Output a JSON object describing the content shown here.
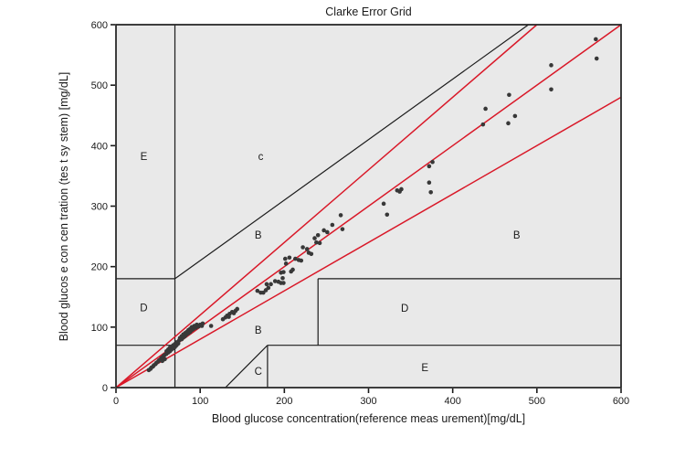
{
  "figure": {
    "title": "Clarke Error Grid",
    "xlabel": "Blood glucose concentration(reference meas urement)[mg/dL]",
    "ylabel": "Blood glucos e con cen tration (tes t sy stem) [mg/dL]"
  },
  "chart_data": {
    "type": "scatter",
    "title": "Clarke Error Grid",
    "xlabel": "Blood glucose concentration(reference meas urement)[mg/dL]",
    "ylabel": "Blood glucos e con cen tration (tes t sy stem) [mg/dL]",
    "xlim": [
      0,
      600
    ],
    "ylim": [
      0,
      600
    ],
    "xticks": [
      0,
      100,
      200,
      300,
      400,
      500,
      600
    ],
    "yticks": [
      0,
      100,
      200,
      300,
      400,
      500,
      600
    ],
    "grid": false,
    "legend": null,
    "zone_labels": [
      {
        "text": "E",
        "x": 33,
        "y": 381
      },
      {
        "text": "c",
        "x": 172,
        "y": 381
      },
      {
        "text": "B",
        "x": 169,
        "y": 251
      },
      {
        "text": "D",
        "x": 33,
        "y": 131
      },
      {
        "text": "B",
        "x": 169,
        "y": 94
      },
      {
        "text": "D",
        "x": 343,
        "y": 130
      },
      {
        "text": "B",
        "x": 476,
        "y": 251
      },
      {
        "text": "C",
        "x": 169,
        "y": 26
      },
      {
        "text": "E",
        "x": 367,
        "y": 32
      }
    ],
    "black_segments": [
      [
        [
          70,
          0
        ],
        [
          70,
          600
        ]
      ],
      [
        [
          0,
          70
        ],
        [
          70,
          70
        ]
      ],
      [
        [
          0,
          180
        ],
        [
          70,
          180
        ]
      ],
      [
        [
          70,
          180
        ],
        [
          490,
          600
        ]
      ],
      [
        [
          130,
          0
        ],
        [
          180,
          70
        ]
      ],
      [
        [
          180,
          0
        ],
        [
          180,
          70
        ]
      ],
      [
        [
          180,
          70
        ],
        [
          600,
          70
        ]
      ],
      [
        [
          240,
          70
        ],
        [
          240,
          180
        ]
      ],
      [
        [
          240,
          180
        ],
        [
          600,
          180
        ]
      ]
    ],
    "red_segments": [
      [
        [
          0,
          0
        ],
        [
          600,
          600
        ]
      ],
      [
        [
          0,
          0
        ],
        [
          500,
          600
        ]
      ],
      [
        [
          0,
          0
        ],
        [
          600,
          480
        ]
      ]
    ],
    "points": [
      [
        39,
        29
      ],
      [
        41,
        31
      ],
      [
        42,
        33
      ],
      [
        44,
        35
      ],
      [
        45,
        37
      ],
      [
        47,
        39
      ],
      [
        48,
        41
      ],
      [
        50,
        43
      ],
      [
        51,
        45
      ],
      [
        53,
        47
      ],
      [
        55,
        44
      ],
      [
        54,
        49
      ],
      [
        56,
        51
      ],
      [
        58,
        47
      ],
      [
        57,
        53
      ],
      [
        58,
        54
      ],
      [
        60,
        56
      ],
      [
        60,
        60
      ],
      [
        62,
        58
      ],
      [
        62,
        63
      ],
      [
        64,
        60
      ],
      [
        64,
        66
      ],
      [
        66,
        63
      ],
      [
        66,
        68
      ],
      [
        68,
        65
      ],
      [
        68,
        70
      ],
      [
        70,
        67
      ],
      [
        70,
        72
      ],
      [
        72,
        70
      ],
      [
        72,
        75
      ],
      [
        74,
        73
      ],
      [
        75,
        78
      ],
      [
        76,
        82
      ],
      [
        78,
        80
      ],
      [
        78,
        85
      ],
      [
        80,
        83
      ],
      [
        80,
        88
      ],
      [
        82,
        85
      ],
      [
        82,
        90
      ],
      [
        84,
        88
      ],
      [
        84,
        92
      ],
      [
        86,
        90
      ],
      [
        86,
        95
      ],
      [
        88,
        92
      ],
      [
        88,
        97
      ],
      [
        90,
        95
      ],
      [
        90,
        100
      ],
      [
        92,
        97
      ],
      [
        93,
        102
      ],
      [
        95,
        99
      ],
      [
        96,
        104
      ],
      [
        98,
        101
      ],
      [
        100,
        104
      ],
      [
        102,
        102
      ],
      [
        103,
        106
      ],
      [
        113,
        102
      ],
      [
        127,
        113
      ],
      [
        130,
        116
      ],
      [
        132,
        119
      ],
      [
        134,
        117
      ],
      [
        135,
        122
      ],
      [
        138,
        125
      ],
      [
        140,
        123
      ],
      [
        142,
        127
      ],
      [
        144,
        130
      ],
      [
        168,
        160
      ],
      [
        172,
        157
      ],
      [
        175,
        157
      ],
      [
        178,
        161
      ],
      [
        181,
        165
      ],
      [
        179,
        171
      ],
      [
        184,
        171
      ],
      [
        189,
        176
      ],
      [
        193,
        175
      ],
      [
        196,
        173
      ],
      [
        199,
        173
      ],
      [
        198,
        181
      ],
      [
        196,
        190
      ],
      [
        199,
        191
      ],
      [
        208,
        192
      ],
      [
        210,
        195
      ],
      [
        202,
        205
      ],
      [
        201,
        213
      ],
      [
        206,
        215
      ],
      [
        213,
        213
      ],
      [
        217,
        211
      ],
      [
        220,
        210
      ],
      [
        229,
        223
      ],
      [
        232,
        221
      ],
      [
        227,
        229
      ],
      [
        222,
        232
      ],
      [
        238,
        240
      ],
      [
        242,
        239
      ],
      [
        236,
        247
      ],
      [
        240,
        252
      ],
      [
        247,
        260
      ],
      [
        251,
        257
      ],
      [
        257,
        269
      ],
      [
        269,
        262
      ],
      [
        267,
        285
      ],
      [
        322,
        286
      ],
      [
        318,
        304
      ],
      [
        334,
        326
      ],
      [
        337,
        324
      ],
      [
        339,
        328
      ],
      [
        374,
        323
      ],
      [
        372,
        339
      ],
      [
        372,
        366
      ],
      [
        376,
        373
      ],
      [
        436,
        435
      ],
      [
        439,
        461
      ],
      [
        466,
        437
      ],
      [
        467,
        484
      ],
      [
        474,
        449
      ],
      [
        517,
        493
      ],
      [
        517,
        533
      ],
      [
        571,
        544
      ],
      [
        570,
        576
      ]
    ],
    "colors": {
      "point": "#383838",
      "red_line": "#d91828",
      "black_line": "#1c1c1c",
      "plot_bg": "#e9e9e9",
      "border": "#2a2a2a",
      "text": "#1a1a1a"
    }
  }
}
